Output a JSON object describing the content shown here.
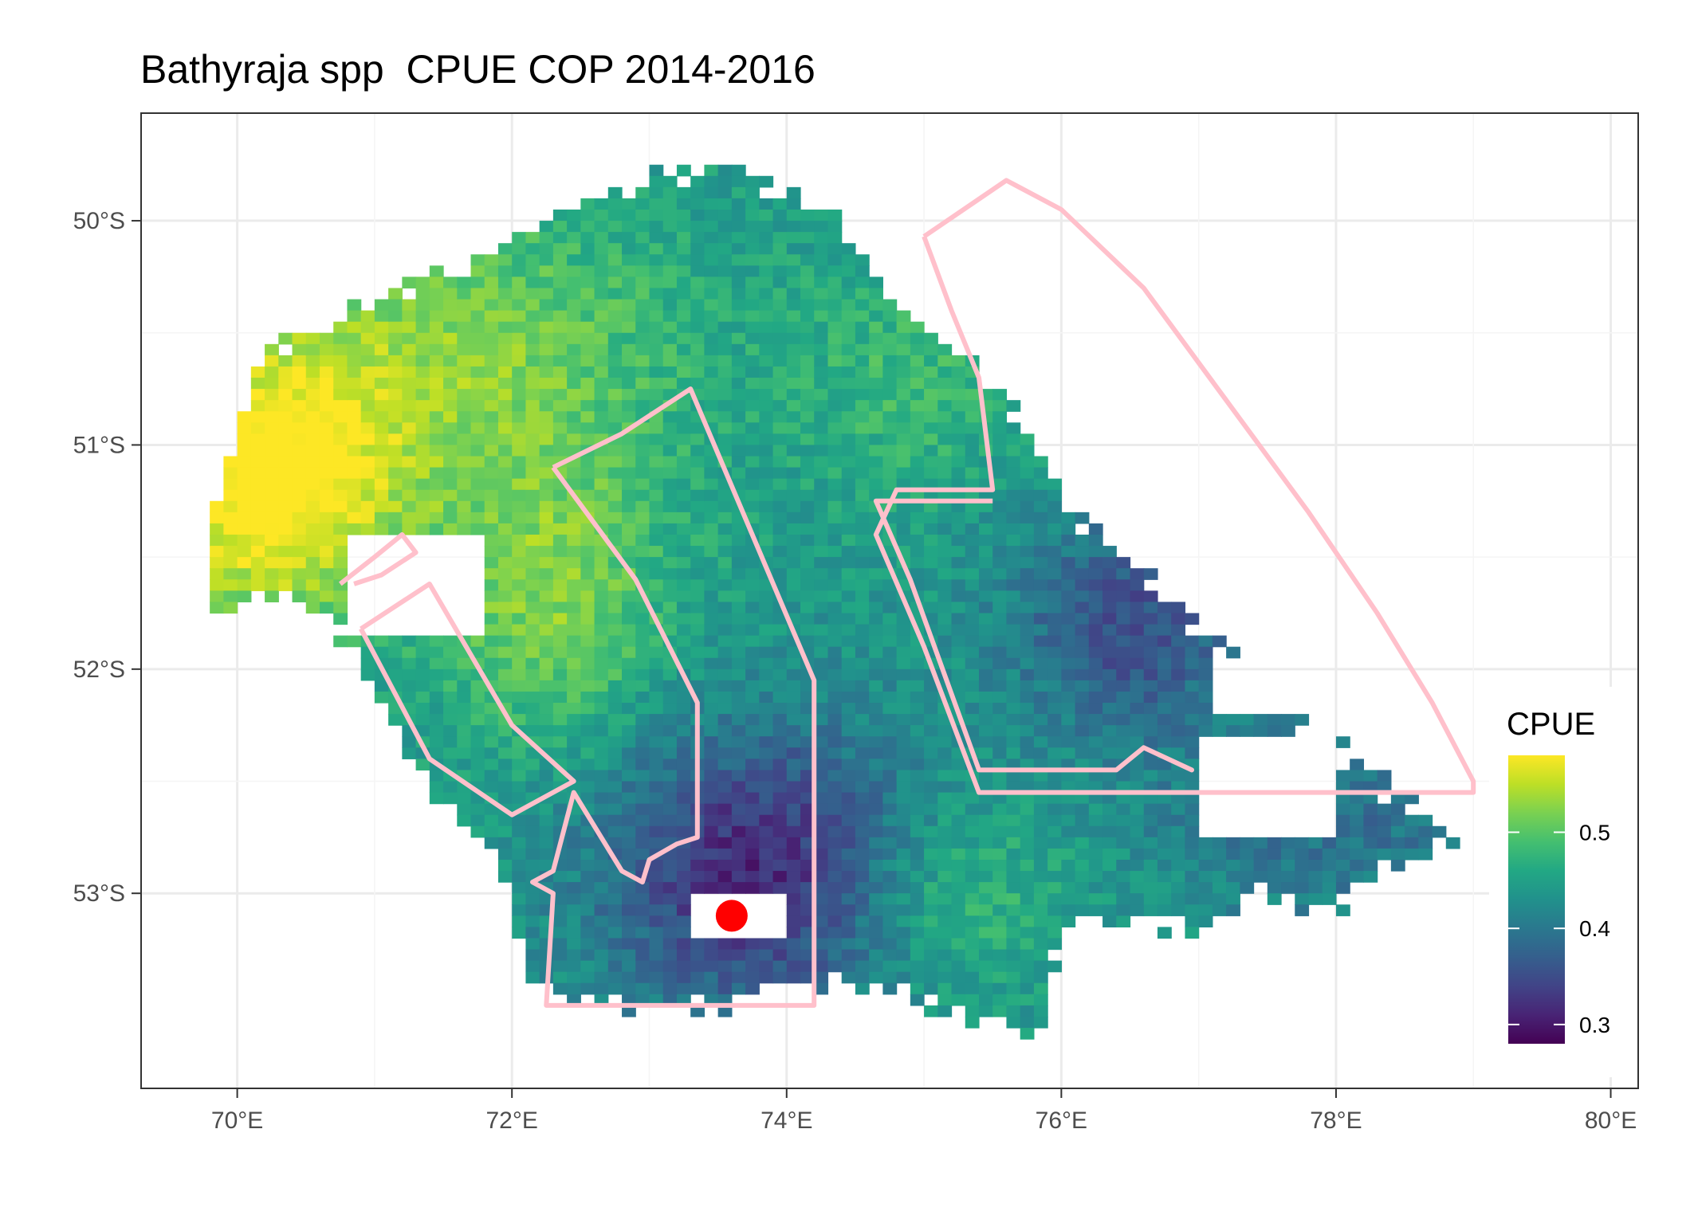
{
  "title": "Bathyraja spp  CPUE COP 2014-2016",
  "chart_data": {
    "type": "heatmap",
    "title": "Bathyraja spp  CPUE COP 2014-2016",
    "xlim": [
      69.3,
      80.2
    ],
    "ylim": [
      -53.87,
      -49.52
    ],
    "x_ticks": [
      70,
      72,
      74,
      76,
      78,
      80
    ],
    "x_tick_labels": [
      "70°E",
      "72°E",
      "74°E",
      "76°E",
      "78°E",
      "80°E"
    ],
    "y_ticks": [
      -50,
      -51,
      -52,
      -53
    ],
    "y_tick_labels": [
      "50°S",
      "51°S",
      "52°S",
      "53°S"
    ],
    "grid": true,
    "legend": {
      "title": "CPUE",
      "position": "right",
      "colormap": "viridis",
      "range": [
        0.28,
        0.58
      ],
      "ticks": [
        0.3,
        0.4,
        0.5
      ],
      "tick_labels": [
        "0.3",
        "0.4",
        "0.5"
      ]
    },
    "cell_size_deg": {
      "lon": 0.1,
      "lat": 0.05
    },
    "fill_extent": {
      "lon_range": [
        69.8,
        78.9
      ],
      "lat_range": [
        -53.7,
        -49.7
      ],
      "north_boundary_lat_by_lon": [
        [
          69.8,
          -51.3
        ],
        [
          70.2,
          -50.6
        ],
        [
          70.9,
          -50.4
        ],
        [
          71.2,
          -50.3
        ],
        [
          72.0,
          -50.1
        ],
        [
          72.6,
          -49.9
        ],
        [
          73.0,
          -49.8
        ],
        [
          73.6,
          -49.8
        ],
        [
          74.0,
          -49.9
        ],
        [
          74.4,
          -50.0
        ],
        [
          74.8,
          -50.4
        ],
        [
          75.3,
          -50.6
        ],
        [
          75.6,
          -50.8
        ],
        [
          75.8,
          -51.0
        ],
        [
          76.1,
          -51.3
        ],
        [
          76.6,
          -51.6
        ],
        [
          77.0,
          -51.8
        ],
        [
          77.5,
          -52.1
        ],
        [
          77.9,
          -52.3
        ],
        [
          78.3,
          -52.5
        ],
        [
          78.8,
          -52.7
        ],
        [
          78.9,
          -52.8
        ]
      ],
      "south_boundary_lat_by_lon": [
        [
          69.8,
          -51.8
        ],
        [
          70.1,
          -51.7
        ],
        [
          70.6,
          -51.7
        ],
        [
          71.0,
          -52.1
        ],
        [
          71.5,
          -52.6
        ],
        [
          71.9,
          -52.8
        ],
        [
          72.1,
          -53.3
        ],
        [
          72.4,
          -53.5
        ],
        [
          73.0,
          -53.5
        ],
        [
          73.6,
          -53.5
        ],
        [
          74.0,
          -53.4
        ],
        [
          74.6,
          -53.4
        ],
        [
          75.0,
          -53.5
        ],
        [
          75.5,
          -53.6
        ],
        [
          75.8,
          -53.7
        ],
        [
          76.0,
          -53.2
        ],
        [
          76.5,
          -53.1
        ],
        [
          77.0,
          -53.2
        ],
        [
          77.5,
          -53.0
        ],
        [
          77.9,
          -53.1
        ],
        [
          78.3,
          -52.9
        ],
        [
          78.9,
          -52.8
        ]
      ],
      "gaps": [
        {
          "lon": [
            70.8,
            71.8
          ],
          "lat": [
            -51.85,
            -51.4
          ]
        },
        {
          "lon": [
            73.25,
            73.95
          ],
          "lat": [
            -53.2,
            -53.0
          ]
        },
        {
          "lon": [
            77.0,
            78.0
          ],
          "lat": [
            -52.75,
            -52.3
          ]
        },
        {
          "lon": [
            77.1,
            77.8
          ],
          "lat": [
            -52.2,
            -51.95
          ]
        }
      ]
    },
    "cpue_field": {
      "base": 0.44,
      "components": [
        {
          "center": [
            70.2,
            -51.2
          ],
          "amplitude": 0.15,
          "sigma": [
            0.7,
            0.45
          ]
        },
        {
          "center": [
            71.6,
            -50.6
          ],
          "amplitude": 0.08,
          "sigma": [
            1.2,
            0.5
          ]
        },
        {
          "center": [
            72.3,
            -51.7
          ],
          "amplitude": 0.08,
          "sigma": [
            0.6,
            0.45
          ]
        },
        {
          "center": [
            73.8,
            -52.9
          ],
          "amplitude": -0.13,
          "sigma": [
            0.8,
            0.45
          ]
        },
        {
          "center": [
            76.5,
            -51.8
          ],
          "amplitude": -0.09,
          "sigma": [
            0.6,
            0.35
          ]
        },
        {
          "center": [
            78.0,
            -52.7
          ],
          "amplitude": -0.05,
          "sigma": [
            1.0,
            0.3
          ]
        },
        {
          "center": [
            74.9,
            -50.7
          ],
          "amplitude": 0.04,
          "sigma": [
            0.6,
            0.4
          ]
        },
        {
          "center": [
            75.2,
            -53.0
          ],
          "amplitude": 0.05,
          "sigma": [
            0.6,
            0.3
          ]
        }
      ]
    },
    "polygons": [
      {
        "color": "#FFC0CB",
        "coords": [
          [
            75.0,
            -50.07
          ],
          [
            75.6,
            -49.82
          ],
          [
            76.0,
            -49.95
          ],
          [
            76.6,
            -50.3
          ],
          [
            77.2,
            -50.8
          ],
          [
            77.8,
            -51.3
          ],
          [
            78.3,
            -51.75
          ],
          [
            78.7,
            -52.15
          ],
          [
            79.0,
            -52.5
          ],
          [
            79.0,
            -52.55
          ],
          [
            75.4,
            -52.55
          ],
          [
            75.0,
            -51.9
          ],
          [
            74.65,
            -51.4
          ],
          [
            74.8,
            -51.2
          ],
          [
            75.5,
            -51.2
          ],
          [
            75.4,
            -50.7
          ],
          [
            75.2,
            -50.4
          ],
          [
            75.0,
            -50.07
          ]
        ]
      },
      {
        "color": "#FFC0CB",
        "coords": [
          [
            75.5,
            -51.25
          ],
          [
            74.65,
            -51.25
          ],
          [
            74.9,
            -51.6
          ],
          [
            75.4,
            -52.45
          ],
          [
            76.4,
            -52.45
          ],
          [
            76.6,
            -52.35
          ],
          [
            76.95,
            -52.45
          ],
          [
            76.6,
            -52.35
          ]
        ]
      },
      {
        "color": "#FFC0CB",
        "coords": [
          [
            72.3,
            -51.1
          ],
          [
            72.8,
            -50.95
          ],
          [
            73.3,
            -50.75
          ],
          [
            74.2,
            -52.05
          ],
          [
            74.2,
            -53.5
          ],
          [
            72.25,
            -53.5
          ],
          [
            72.3,
            -53.0
          ],
          [
            72.15,
            -52.95
          ],
          [
            72.3,
            -52.9
          ],
          [
            72.45,
            -52.55
          ],
          [
            72.8,
            -52.9
          ],
          [
            72.95,
            -52.95
          ],
          [
            73.0,
            -52.85
          ],
          [
            73.2,
            -52.78
          ],
          [
            73.35,
            -52.75
          ],
          [
            73.35,
            -52.15
          ],
          [
            72.9,
            -51.6
          ],
          [
            72.3,
            -51.1
          ]
        ]
      },
      {
        "color": "#FFC0CB",
        "coords": [
          [
            70.75,
            -51.62
          ],
          [
            71.0,
            -51.5
          ],
          [
            71.2,
            -51.4
          ],
          [
            71.3,
            -51.48
          ],
          [
            71.05,
            -51.58
          ],
          [
            70.85,
            -51.62
          ]
        ]
      },
      {
        "color": "#FFC0CB",
        "coords": [
          [
            70.9,
            -51.82
          ],
          [
            71.4,
            -51.62
          ],
          [
            72.0,
            -52.25
          ],
          [
            72.45,
            -52.5
          ],
          [
            72.0,
            -52.65
          ],
          [
            71.4,
            -52.4
          ],
          [
            70.9,
            -51.82
          ]
        ]
      }
    ],
    "points": [
      {
        "lon": 73.6,
        "lat": -53.1,
        "color": "#FF0000"
      }
    ]
  }
}
